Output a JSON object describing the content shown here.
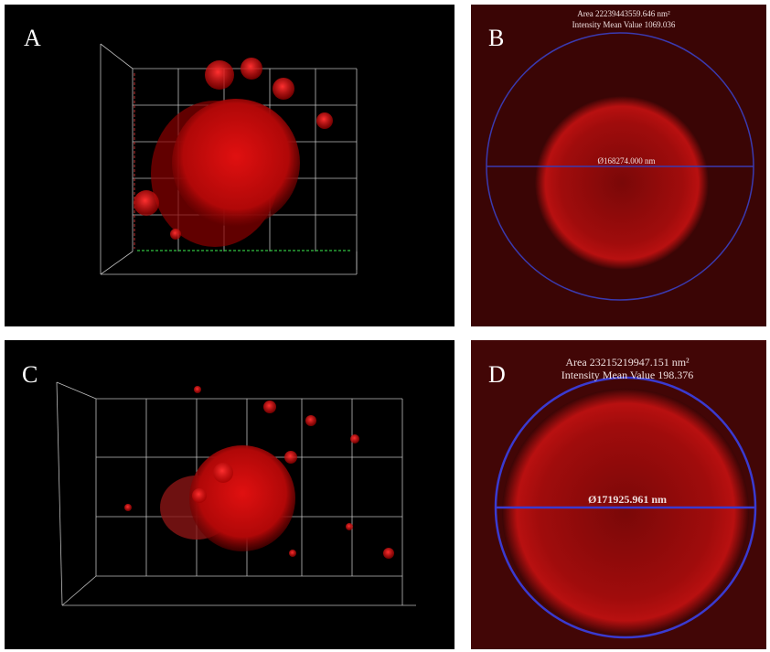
{
  "panels": [
    {
      "label": "A"
    },
    {
      "label": "B",
      "area": "Area 22239443559.646 nm²",
      "intensity": "Intensity Mean Value 1069.036",
      "diameter": "Ø168274.000 nm"
    },
    {
      "label": "C"
    },
    {
      "label": "D",
      "area": "Area 23215219947.151 nm²",
      "intensity": "Intensity Mean Value 198.376",
      "diameter": "Ø171925.961 nm"
    }
  ]
}
